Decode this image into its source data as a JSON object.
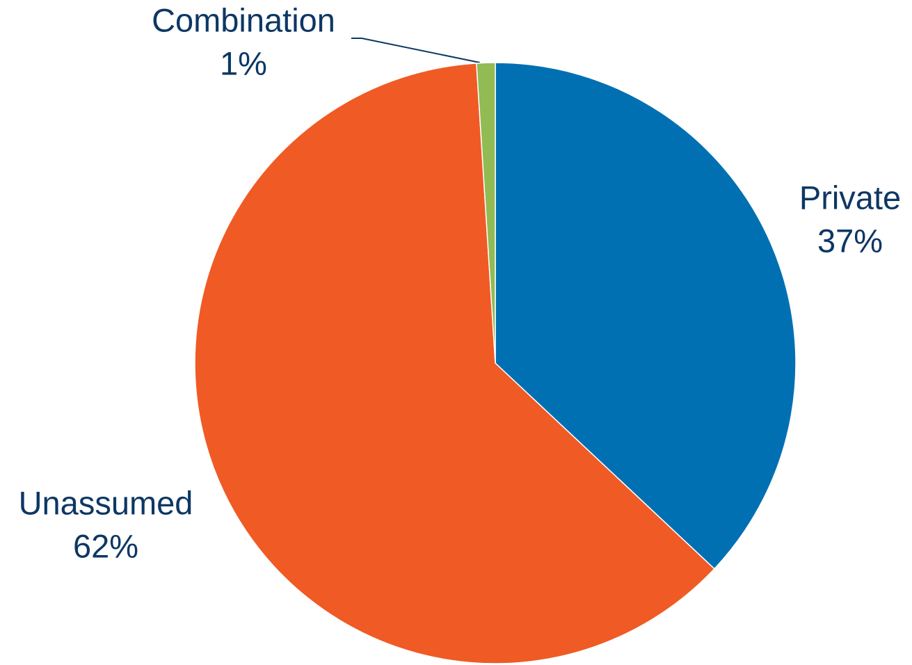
{
  "chart_data": {
    "type": "pie",
    "categories": [
      "Private",
      "Unassumed",
      "Combination"
    ],
    "values": [
      37,
      62,
      1
    ],
    "value_labels": [
      "37%",
      "62%",
      "1%"
    ],
    "colors": [
      "#0070b3",
      "#f05a24",
      "#92bb54"
    ]
  }
}
